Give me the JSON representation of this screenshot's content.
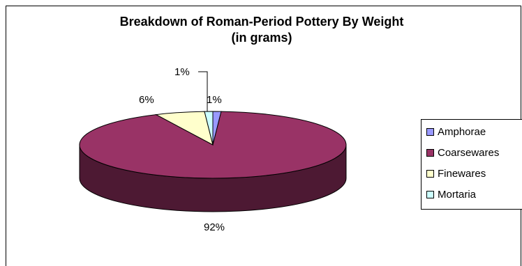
{
  "chart_data": {
    "type": "pie",
    "title": "Breakdown of Roman-Period Pottery By Weight",
    "subtitle": "(in grams)",
    "slices": [
      {
        "name": "Amphorae",
        "percent": 1,
        "label": "1%",
        "color": "#9999ff"
      },
      {
        "name": "Coarsewares",
        "percent": 92,
        "label": "92%",
        "color": "#993366"
      },
      {
        "name": "Finewares",
        "percent": 6,
        "label": "6%",
        "color": "#ffffcc"
      },
      {
        "name": "Mortaria",
        "percent": 1,
        "label": "1%",
        "color": "#ccffff"
      }
    ],
    "legend_position": "right",
    "side_color": "#4d1933"
  }
}
